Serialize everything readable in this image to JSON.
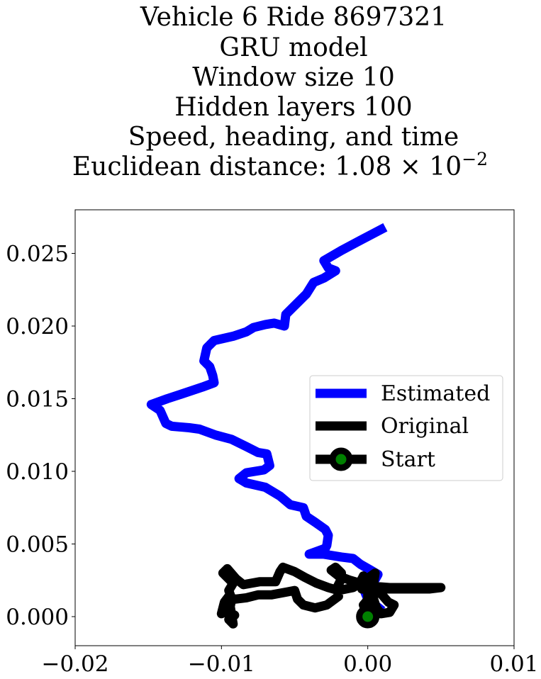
{
  "chart_data": {
    "type": "line",
    "title_lines": [
      "Vehicle 6 Ride 8697321",
      "GRU model",
      "Window size 10",
      "Hidden layers 100",
      "Speed, heading, and time",
      "Euclidean distance: 1.08 × 10"
    ],
    "title_exponent": "−2",
    "xlim": [
      -0.02,
      0.01
    ],
    "ylim": [
      -0.002,
      0.028
    ],
    "x_ticks": [
      -0.02,
      -0.01,
      0.0,
      0.01
    ],
    "x_tick_labels": [
      "−0.02",
      "−0.01",
      "0.00",
      "0.01"
    ],
    "y_ticks": [
      0.0,
      0.005,
      0.01,
      0.015,
      0.02,
      0.025
    ],
    "y_tick_labels": [
      "0.000",
      "0.005",
      "0.010",
      "0.015",
      "0.020",
      "0.025"
    ],
    "grid": false,
    "legend_position": "center-right",
    "series": [
      {
        "name": "Estimated",
        "color": "#0000ff",
        "points": [
          [
            0.0012,
            0.0268
          ],
          [
            -0.0005,
            0.0259
          ],
          [
            -0.0018,
            0.0252
          ],
          [
            -0.003,
            0.0245
          ],
          [
            -0.0027,
            0.024
          ],
          [
            -0.0022,
            0.0238
          ],
          [
            -0.003,
            0.0233
          ],
          [
            -0.0037,
            0.023
          ],
          [
            -0.0042,
            0.0222
          ],
          [
            -0.0052,
            0.0212
          ],
          [
            -0.0056,
            0.0208
          ],
          [
            -0.0057,
            0.02
          ],
          [
            -0.0064,
            0.0202
          ],
          [
            -0.007,
            0.0201
          ],
          [
            -0.0078,
            0.0199
          ],
          [
            -0.0083,
            0.0196
          ],
          [
            -0.0092,
            0.0193
          ],
          [
            -0.0105,
            0.019
          ],
          [
            -0.011,
            0.0185
          ],
          [
            -0.0112,
            0.0176
          ],
          [
            -0.0108,
            0.0172
          ],
          [
            -0.0106,
            0.0166
          ],
          [
            -0.0105,
            0.0161
          ],
          [
            -0.0113,
            0.0158
          ],
          [
            -0.0128,
            0.0153
          ],
          [
            -0.0137,
            0.015
          ],
          [
            -0.0148,
            0.0146
          ],
          [
            -0.0142,
            0.0142
          ],
          [
            -0.0138,
            0.0133
          ],
          [
            -0.0134,
            0.0131
          ],
          [
            -0.0122,
            0.013
          ],
          [
            -0.0115,
            0.0129
          ],
          [
            -0.0104,
            0.0125
          ],
          [
            -0.0093,
            0.0122
          ],
          [
            -0.0083,
            0.0117
          ],
          [
            -0.0075,
            0.0113
          ],
          [
            -0.0069,
            0.0112
          ],
          [
            -0.0067,
            0.0104
          ],
          [
            -0.0071,
            0.0101
          ],
          [
            -0.0083,
            0.0099
          ],
          [
            -0.0088,
            0.0095
          ],
          [
            -0.0083,
            0.0092
          ],
          [
            -0.007,
            0.0089
          ],
          [
            -0.006,
            0.0083
          ],
          [
            -0.0053,
            0.0077
          ],
          [
            -0.0044,
            0.0075
          ],
          [
            -0.0042,
            0.0069
          ],
          [
            -0.0036,
            0.0065
          ],
          [
            -0.0029,
            0.006
          ],
          [
            -0.0027,
            0.0056
          ],
          [
            -0.0028,
            0.0049
          ],
          [
            -0.0029,
            0.0047
          ],
          [
            -0.004,
            0.0043
          ],
          [
            -0.003,
            0.0043
          ],
          [
            -0.0018,
            0.0041
          ],
          [
            -0.001,
            0.004
          ],
          [
            -0.0005,
            0.0036
          ],
          [
            0.0002,
            0.0032
          ],
          [
            0.0007,
            0.0029
          ],
          [
            0.0003,
            0.0022
          ],
          [
            -0.0002,
            0.0017
          ],
          [
            0.0,
            0.0012
          ],
          [
            0.0005,
            0.0008
          ],
          [
            0.001,
            0.0004
          ]
        ]
      },
      {
        "name": "Original",
        "color": "#000000",
        "points": [
          [
            0.0,
            0.0
          ],
          [
            -0.0003,
            0.0008
          ],
          [
            0.0002,
            0.0014
          ],
          [
            0.0003,
            0.0022
          ],
          [
            -0.0003,
            0.0028
          ],
          [
            -0.0005,
            0.0024
          ],
          [
            -0.0004,
            0.0019
          ],
          [
            0.0002,
            0.0018
          ],
          [
            0.0008,
            0.0017
          ],
          [
            0.0014,
            0.001
          ],
          [
            0.0018,
            0.0008
          ],
          [
            0.0015,
            0.0003
          ],
          [
            0.0009,
            0.0002
          ],
          [
            0.0006,
            0.0006
          ],
          [
            0.0004,
            0.0012
          ],
          [
            0.0004,
            0.0019
          ],
          [
            0.0015,
            0.0019
          ],
          [
            0.003,
            0.0019
          ],
          [
            0.0042,
            0.0019
          ],
          [
            0.005,
            0.002
          ],
          [
            0.0035,
            0.002
          ],
          [
            0.0015,
            0.002
          ],
          [
            0.0002,
            0.0021
          ],
          [
            -0.0005,
            0.0023
          ],
          [
            -0.0012,
            0.0025
          ],
          [
            -0.002,
            0.0028
          ],
          [
            -0.0025,
            0.0032
          ],
          [
            -0.0022,
            0.0034
          ],
          [
            -0.0018,
            0.003
          ],
          [
            -0.0018,
            0.0026
          ],
          [
            -0.0021,
            0.002
          ],
          [
            -0.002,
            0.0014
          ],
          [
            -0.0028,
            0.0008
          ],
          [
            -0.0036,
            0.0006
          ],
          [
            -0.0044,
            0.0008
          ],
          [
            -0.0048,
            0.0012
          ],
          [
            -0.005,
            0.0018
          ],
          [
            -0.0055,
            0.0017
          ],
          [
            -0.0066,
            0.0015
          ],
          [
            -0.0075,
            0.0015
          ],
          [
            -0.0083,
            0.0013
          ],
          [
            -0.0091,
            0.0012
          ],
          [
            -0.0095,
            0.0014
          ],
          [
            -0.0098,
            0.001
          ],
          [
            -0.01,
            0.0002
          ],
          [
            -0.0096,
            0.0004
          ],
          [
            -0.0091,
            0.0001
          ],
          [
            -0.0095,
            -0.0002
          ],
          [
            -0.0092,
            -0.0005
          ],
          [
            -0.0094,
            0.0007
          ],
          [
            -0.0093,
            0.0012
          ],
          [
            -0.0095,
            0.0018
          ],
          [
            -0.0092,
            0.0023
          ],
          [
            -0.0099,
            0.003
          ],
          [
            -0.0096,
            0.0033
          ],
          [
            -0.009,
            0.0026
          ],
          [
            -0.0085,
            0.0022
          ],
          [
            -0.0074,
            0.0024
          ],
          [
            -0.0063,
            0.0024
          ],
          [
            -0.006,
            0.0031
          ],
          [
            -0.0058,
            0.0034
          ],
          [
            -0.005,
            0.0031
          ],
          [
            -0.0043,
            0.0027
          ],
          [
            -0.0035,
            0.0023
          ],
          [
            -0.0027,
            0.002
          ],
          [
            -0.002,
            0.0018
          ],
          [
            -0.001,
            0.002
          ],
          [
            -0.0002,
            0.0025
          ],
          [
            0.0005,
            0.003
          ],
          [
            0.0004,
            0.0023
          ],
          [
            0.0,
            0.0015
          ],
          [
            0.0,
            0.0
          ]
        ]
      }
    ],
    "start_point": {
      "name": "Start",
      "x": 0.0,
      "y": 0.0,
      "marker_color": "#008000",
      "edge_color": "#000000"
    }
  }
}
